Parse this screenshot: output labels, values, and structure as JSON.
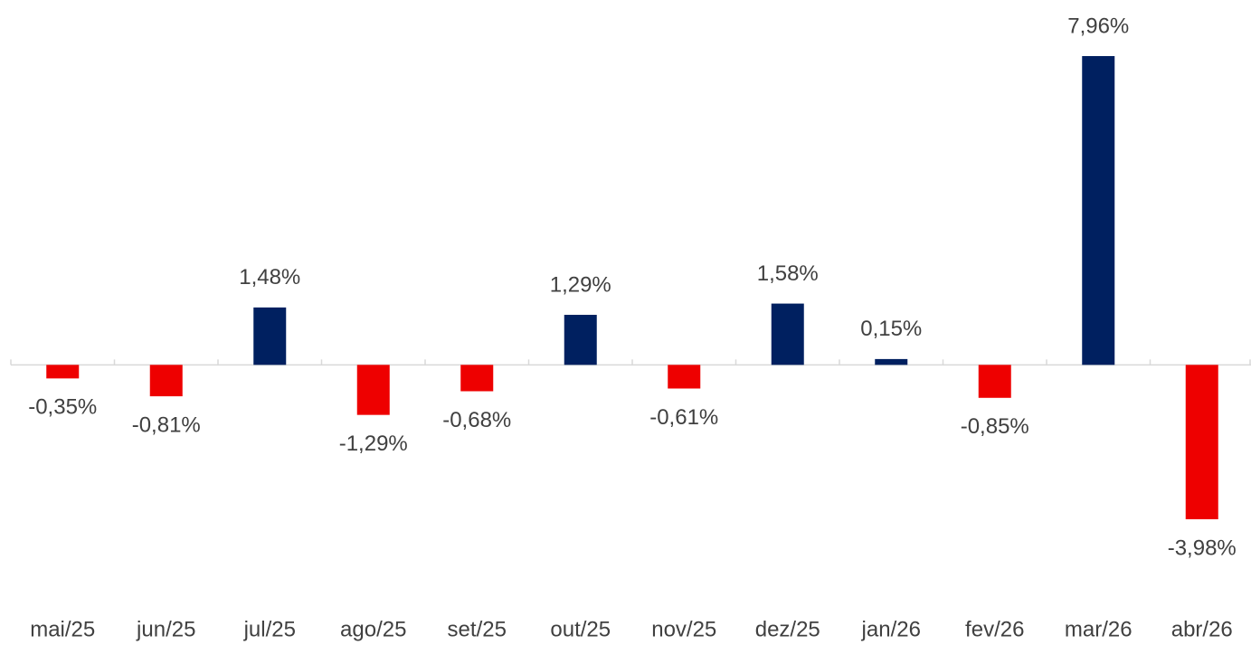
{
  "chart_data": {
    "type": "bar",
    "categories": [
      "mai/25",
      "jun/25",
      "jul/25",
      "ago/25",
      "set/25",
      "out/25",
      "nov/25",
      "dez/25",
      "jan/26",
      "fev/26",
      "mar/26",
      "abr/26"
    ],
    "values": [
      -0.35,
      -0.81,
      1.48,
      -1.29,
      -0.68,
      1.29,
      -0.61,
      1.58,
      0.15,
      -0.85,
      7.96,
      -3.98
    ],
    "value_labels": [
      "-0,35%",
      "-0,81%",
      "1,48%",
      "-1,29%",
      "-0,68%",
      "1,29%",
      "-0,61%",
      "1,58%",
      "0,15%",
      "-0,85%",
      "7,96%",
      "-3,98%"
    ],
    "positive_color": "#002060",
    "negative_color": "#ee0000"
  }
}
